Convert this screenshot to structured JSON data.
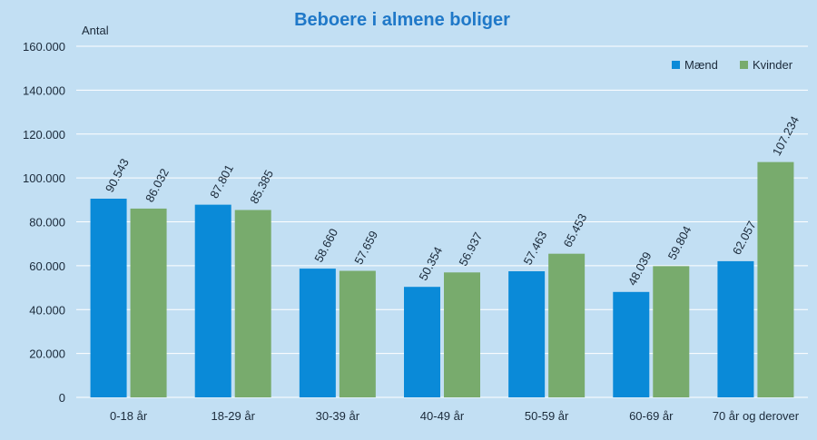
{
  "chart_data": {
    "type": "bar",
    "title": "Beboere i almene boliger",
    "ylabel": "Antal",
    "xlabel": "",
    "categories": [
      "0-18 år",
      "18-29 år",
      "30-39 år",
      "40-49 år",
      "50-59 år",
      "60-69 år",
      "70 år og derover"
    ],
    "series": [
      {
        "name": "Mænd",
        "color": "#0a8ad8",
        "values": [
          90543,
          87801,
          58660,
          50354,
          57463,
          48039,
          62057
        ],
        "labels": [
          "90.543",
          "87.801",
          "58.660",
          "50.354",
          "57.463",
          "48.039",
          "62.057"
        ]
      },
      {
        "name": "Kvinder",
        "color": "#78ab6d",
        "values": [
          86032,
          85385,
          57659,
          56937,
          65453,
          59804,
          107234
        ],
        "labels": [
          "86.032",
          "85.385",
          "57.659",
          "56.937",
          "65.453",
          "59.804",
          "107.234"
        ]
      }
    ],
    "ylim": [
      0,
      160000
    ],
    "yticks": [
      0,
      20000,
      40000,
      60000,
      80000,
      100000,
      120000,
      140000,
      160000
    ],
    "ytick_labels": [
      "0",
      "20.000",
      "40.000",
      "60.000",
      "80.000",
      "100.000",
      "120.000",
      "140.000",
      "160.000"
    ],
    "grid": true,
    "legend_position": "top-right",
    "background": "#c2dff3"
  }
}
